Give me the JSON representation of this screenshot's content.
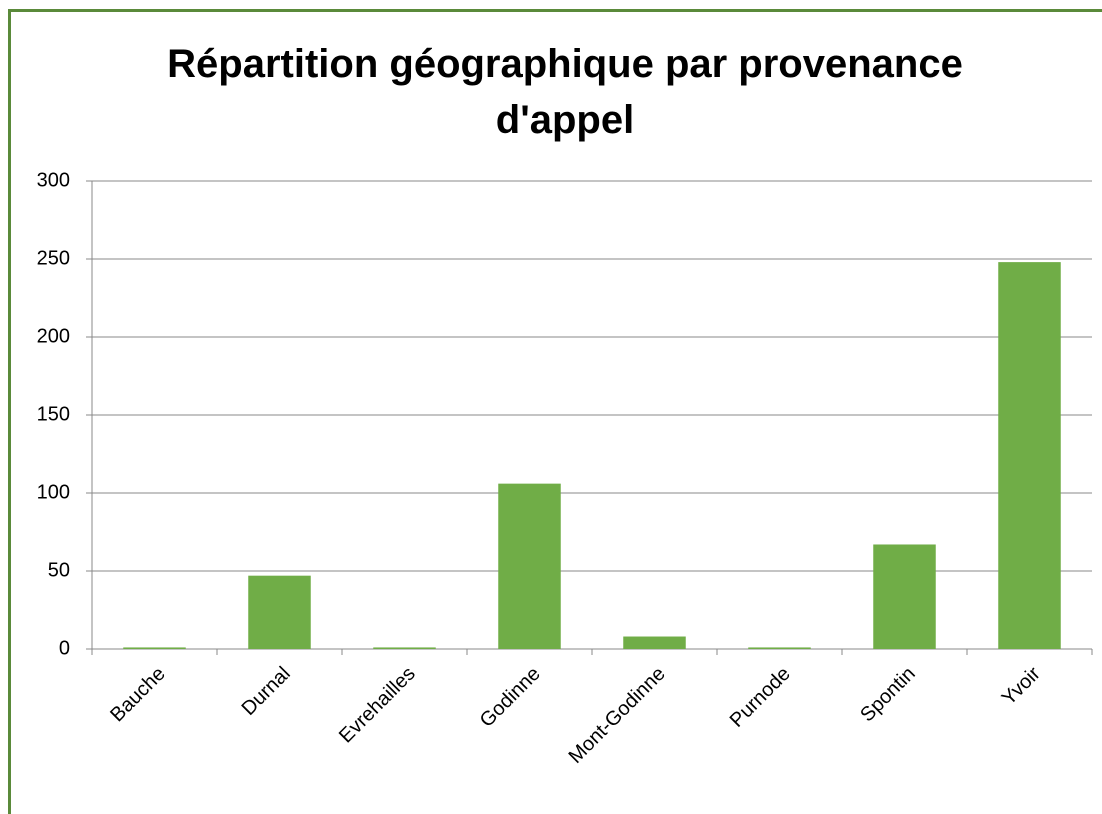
{
  "chart_data": {
    "type": "bar",
    "title": "Répartition géographique par provenance d'appel",
    "categories": [
      "Bauche",
      "Durnal",
      "Evrehailles",
      "Godinne",
      "Mont-Godinne",
      "Purnode",
      "Spontin",
      "Yvoir"
    ],
    "values": [
      1,
      47,
      1,
      106,
      8,
      1,
      67,
      248
    ],
    "color": "#70ad47",
    "ylim": [
      0,
      300
    ],
    "yticks": [
      0,
      50,
      100,
      150,
      200,
      250,
      300
    ],
    "grid": true
  }
}
